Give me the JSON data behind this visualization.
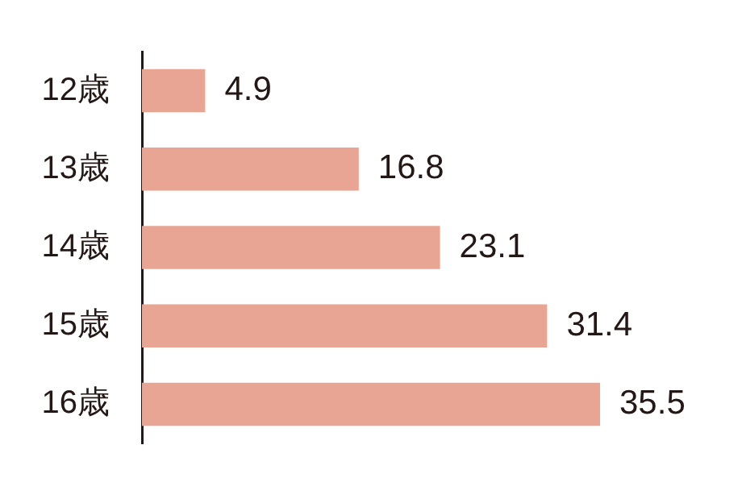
{
  "chart_data": {
    "type": "bar",
    "orientation": "horizontal",
    "categories": [
      "12歳",
      "13歳",
      "14歳",
      "15歳",
      "16歳"
    ],
    "values": [
      4.9,
      16.8,
      23.1,
      31.4,
      35.5
    ],
    "color": "#e8a593",
    "data_labels": true,
    "tick_labels": "y",
    "grid": false,
    "legend": false
  }
}
